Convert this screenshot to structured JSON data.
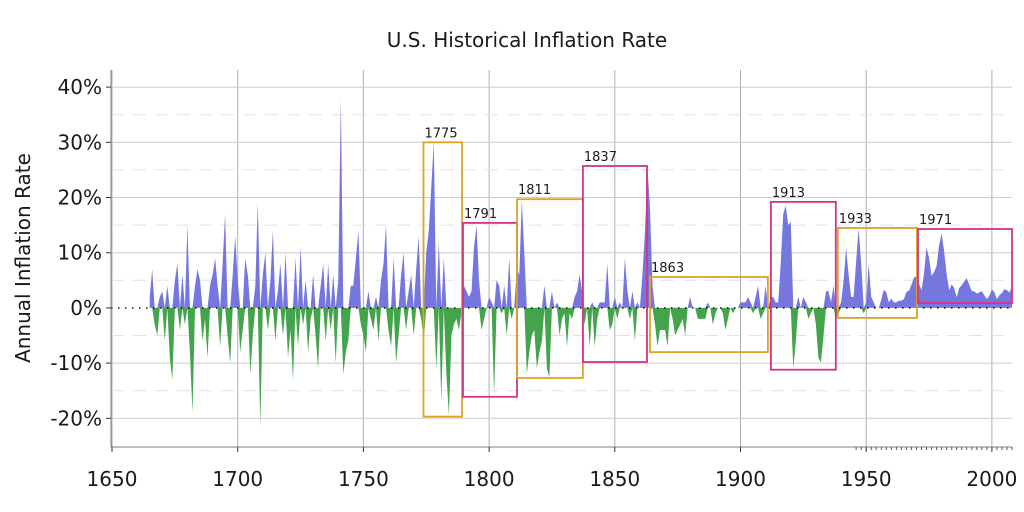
{
  "chart_data": {
    "type": "area",
    "title": "U.S. Historical Inflation Rate",
    "ylabel": "Annual Inflation Rate",
    "xlabel": "",
    "xlim": [
      1649.6,
      2008.0
    ],
    "ylim": [
      -25.2,
      43.1
    ],
    "grid": "on",
    "legend_position": "none",
    "xticks": [
      {
        "v": 1650,
        "label": "1650"
      },
      {
        "v": 1700,
        "label": "1700"
      },
      {
        "v": 1750,
        "label": "1750"
      },
      {
        "v": 1800,
        "label": "1800"
      },
      {
        "v": 1850,
        "label": "1850"
      },
      {
        "v": 1900,
        "label": "1900"
      },
      {
        "v": 1950,
        "label": "1950"
      },
      {
        "v": 2000,
        "label": "2000"
      }
    ],
    "yticks": [
      {
        "v": 40,
        "label": "40%"
      },
      {
        "v": 30,
        "label": "30%"
      },
      {
        "v": 20,
        "label": "20%"
      },
      {
        "v": 10,
        "label": "10%"
      },
      {
        "v": 0,
        "label": "0%"
      },
      {
        "v": -10,
        "label": "-10%"
      },
      {
        "v": -20,
        "label": "-20%"
      }
    ],
    "minor_gridlines": [
      35,
      25,
      15,
      5,
      -5,
      -15
    ],
    "colors": {
      "positive_fill": "#7577de",
      "negative_fill": "#44a44c",
      "box_orange": "#dba427",
      "box_magenta": "#d23485",
      "grid_major": "#cccccc",
      "grid_minor": "#e2e2e2",
      "grid_vertical": "#b0b0b0",
      "zero_line": "#000000",
      "axis": "#808080",
      "tick": "#333333",
      "text": "#1a1a1a"
    },
    "annotations": [
      {
        "label": "1775",
        "x0": 1773.9,
        "x1": 1789.2,
        "y0": -19.7,
        "y1": 30.0,
        "color_key": "box_orange"
      },
      {
        "label": "1791",
        "x0": 1789.6,
        "x1": 1811.1,
        "y0": -16.1,
        "y1": 15.4,
        "color_key": "box_magenta"
      },
      {
        "label": "1811",
        "x0": 1811.1,
        "x1": 1837.3,
        "y0": -12.7,
        "y1": 19.7,
        "color_key": "box_orange"
      },
      {
        "label": "1837",
        "x0": 1837.3,
        "x1": 1862.8,
        "y0": -9.8,
        "y1": 25.7,
        "color_key": "box_magenta"
      },
      {
        "label": "1863",
        "x0": 1864.0,
        "x1": 1910.9,
        "y0": -8.0,
        "y1": 5.6,
        "color_key": "box_orange"
      },
      {
        "label": "1913",
        "x0": 1912.1,
        "x1": 1937.9,
        "y0": -11.2,
        "y1": 19.2,
        "color_key": "box_magenta"
      },
      {
        "label": "1933",
        "x0": 1938.7,
        "x1": 1970.2,
        "y0": -1.8,
        "y1": 14.5,
        "color_key": "box_orange"
      },
      {
        "label": "1971",
        "x0": 1970.6,
        "x1": 2008.0,
        "y0": 0.9,
        "y1": 14.3,
        "color_key": "box_magenta"
      }
    ],
    "series": {
      "name": "annual_inflation_percent",
      "start_year": 1665,
      "end_year": 2008,
      "values": [
        2,
        7,
        -3,
        -5,
        2,
        3,
        -6,
        4,
        -9,
        -13,
        5,
        8,
        -4,
        6,
        -3,
        15,
        -8,
        -19,
        4,
        7,
        5,
        -6,
        -2,
        -9,
        4,
        6,
        9,
        4,
        -7,
        8,
        17,
        -5,
        -10,
        6,
        13,
        5,
        -8,
        -4,
        9,
        6,
        -12,
        -5,
        4,
        19,
        -21.5,
        6,
        10,
        -4,
        5,
        14,
        -6,
        3,
        8,
        -5,
        10,
        -9,
        -4,
        -13,
        9,
        -7,
        11,
        -3,
        5,
        -8,
        -2,
        6,
        -5,
        -11,
        4,
        8,
        -6,
        8,
        -4,
        6,
        -10,
        5,
        38,
        -12,
        -8,
        -6,
        4,
        4,
        9,
        14,
        -3,
        -5,
        -8,
        3,
        -2,
        -4,
        2,
        -6,
        5,
        8,
        15,
        -4,
        -7,
        9,
        -10,
        -5,
        6,
        10,
        -4,
        3,
        6,
        -5,
        7,
        13,
        -2,
        -6,
        10,
        14,
        22,
        30,
        -11,
        12,
        -17,
        9,
        -12,
        -19.5,
        -5,
        -3,
        -2,
        -4,
        -1,
        4,
        3,
        2,
        3,
        11,
        15,
        5,
        -4,
        -2,
        0,
        2,
        1,
        -15.7,
        5,
        4,
        -1,
        4,
        -5,
        9,
        -2,
        0,
        7,
        6,
        19.5,
        10,
        -12,
        -8,
        -5,
        -4,
        -11,
        -8,
        -6,
        4,
        -11,
        -12.6,
        3,
        0,
        1,
        -5,
        -2,
        -1,
        -7,
        -1,
        -2,
        2,
        3,
        6,
        3,
        -3,
        0,
        -7,
        1,
        -7,
        -2,
        1,
        1,
        1,
        8,
        -4,
        -3,
        2,
        -2,
        1,
        0,
        9,
        3,
        -2,
        3,
        -6,
        1,
        0,
        6,
        14,
        25.3,
        18,
        4,
        -3,
        -7,
        -4,
        -4,
        -4,
        -7,
        0,
        -2,
        -5,
        -4,
        -3,
        -2,
        -5,
        0,
        2,
        0,
        0,
        -2,
        -2,
        -2,
        -2,
        1,
        0,
        -3,
        -1,
        0,
        0,
        -1,
        -4,
        -2,
        0,
        -1,
        0,
        0,
        1,
        1,
        1,
        2,
        1,
        -1,
        2,
        4,
        -2,
        -1,
        4,
        0,
        2,
        2,
        1,
        1,
        8,
        17,
        18.5,
        15,
        15.6,
        -11,
        -6,
        2,
        0,
        2,
        1,
        -2,
        -1,
        0,
        -3,
        -9,
        -9.9,
        -5,
        3,
        3,
        1,
        4,
        -2,
        -1,
        1,
        5,
        10.9,
        6,
        2,
        2,
        8.3,
        14.4,
        8,
        -1,
        1,
        7.9,
        2,
        1,
        0,
        0,
        1.5,
        3.3,
        2.8,
        1,
        1.7,
        1,
        1,
        1.3,
        1.3,
        1.6,
        2.9,
        3.1,
        4.2,
        5.5,
        5.7,
        4.4,
        3.2,
        6.2,
        11,
        9.1,
        5.8,
        6.5,
        7.6,
        11.3,
        13.5,
        10.3,
        6.2,
        3.2,
        4.3,
        3.6,
        1.9,
        3.6,
        4.1,
        4.8,
        5.4,
        4.2,
        3,
        3,
        2.6,
        2.8,
        3,
        2.3,
        1.6,
        2.2,
        3.4,
        2.8,
        1.6,
        2.3,
        2.7,
        3.4,
        3.2,
        2.8,
        3.8
      ]
    },
    "minor_xticks": {
      "start_year": 1946,
      "end_year": 2008,
      "step": 2
    }
  }
}
